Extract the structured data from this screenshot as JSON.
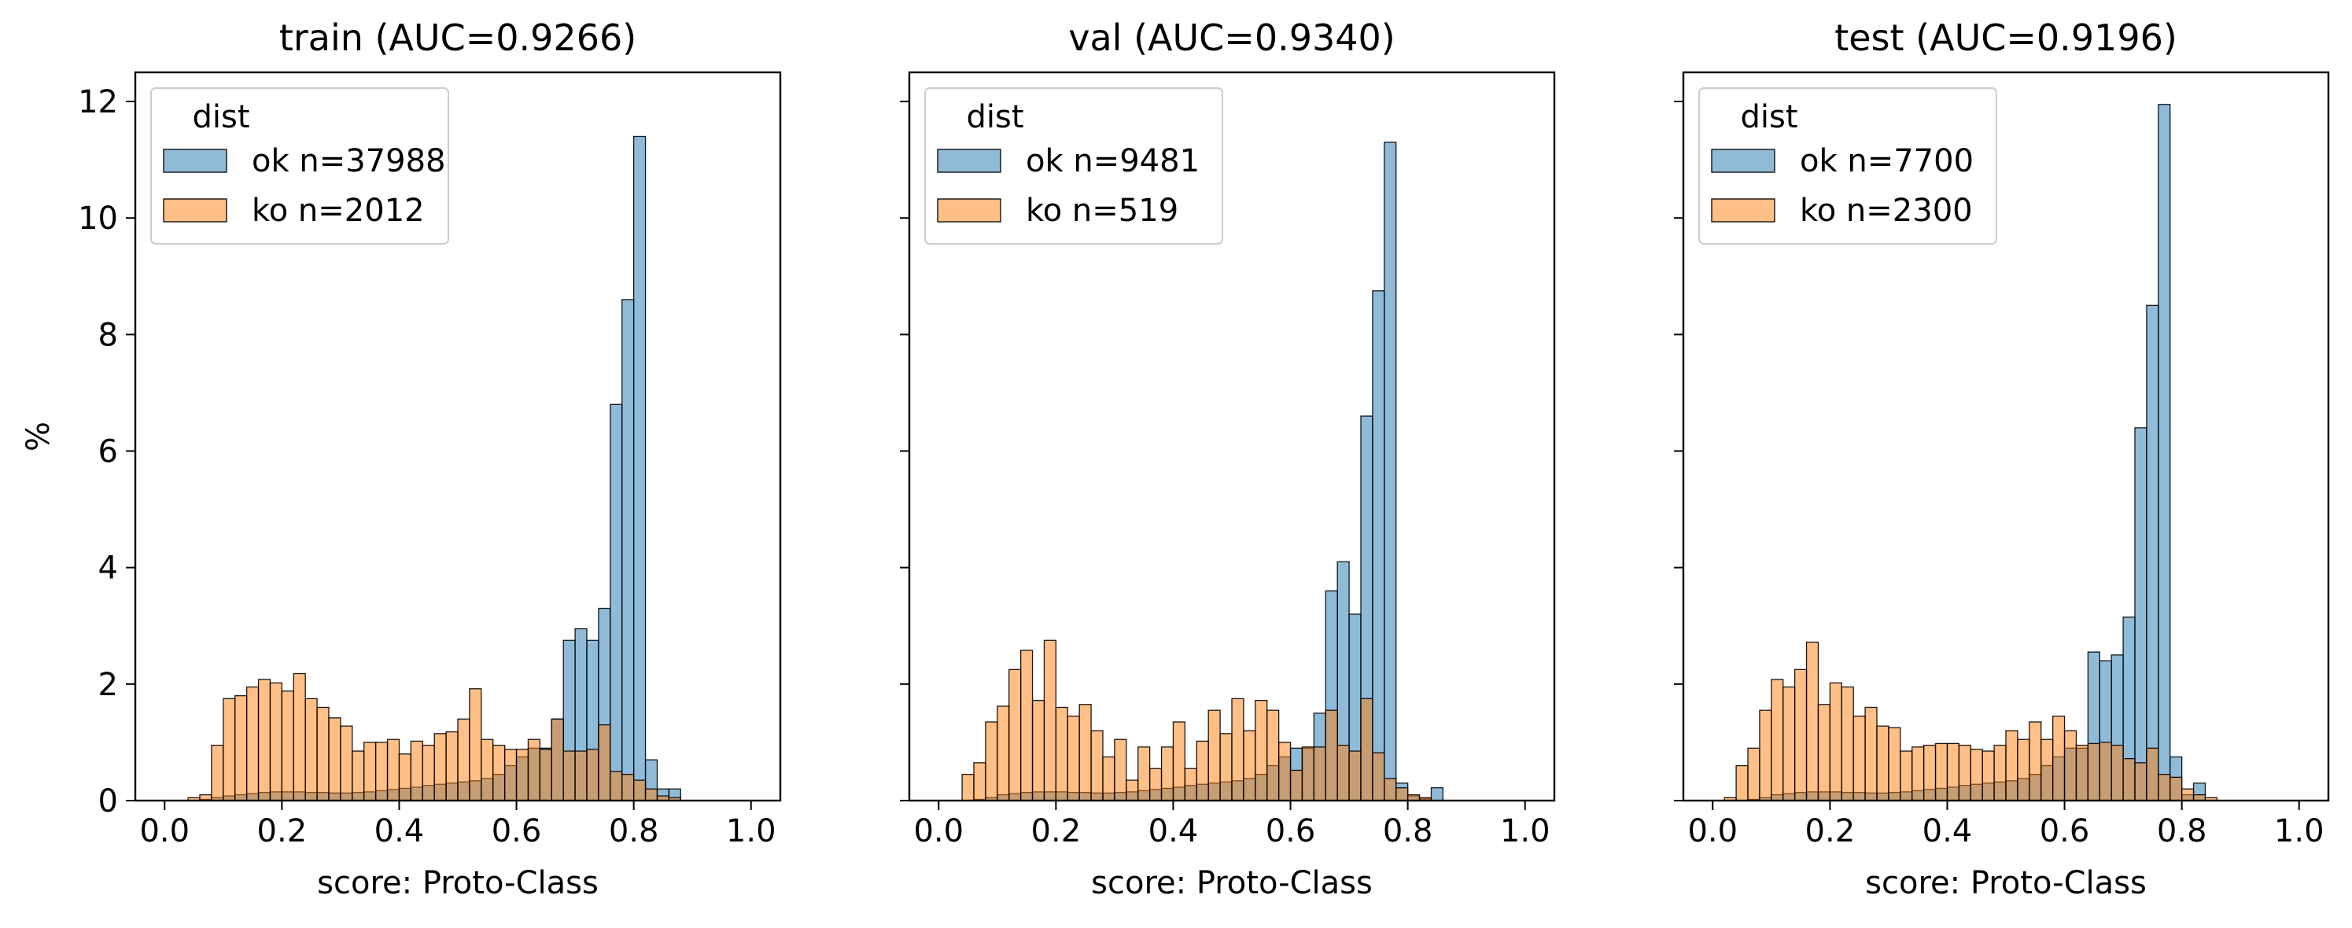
{
  "figure": {
    "ylabel": "%",
    "legend_title": "dist"
  },
  "colors": {
    "ok": "#1f77b4",
    "ko": "#ff7f0e",
    "edge": "#000000"
  },
  "chart_data": [
    {
      "type": "bar",
      "title": "train (AUC=0.9266)",
      "xlabel": "score: Proto-Class",
      "ylabel": "%",
      "xlim": [
        -0.05,
        1.05
      ],
      "ylim": [
        0,
        12.5
      ],
      "bin_width": 0.02,
      "bin_start": 0.0,
      "xticks": [
        0.0,
        0.2,
        0.4,
        0.6,
        0.8,
        1.0
      ],
      "xtick_labels": [
        "0.0",
        "0.2",
        "0.4",
        "0.6",
        "0.8",
        "1.0"
      ],
      "yticks": [
        0,
        2,
        4,
        6,
        8,
        10,
        12
      ],
      "ytick_labels": [
        "0",
        "2",
        "4",
        "6",
        "8",
        "10",
        "12"
      ],
      "legend_placement": "top-left",
      "series": [
        {
          "name": "ok n=37988",
          "key": "ok",
          "values": [
            0,
            0,
            0,
            0.02,
            0.05,
            0.08,
            0.1,
            0.12,
            0.14,
            0.15,
            0.15,
            0.15,
            0.14,
            0.14,
            0.13,
            0.13,
            0.14,
            0.15,
            0.17,
            0.19,
            0.21,
            0.23,
            0.26,
            0.28,
            0.3,
            0.32,
            0.34,
            0.38,
            0.45,
            0.6,
            0.75,
            0.9,
            0.9,
            1.4,
            2.75,
            2.95,
            2.75,
            3.3,
            6.8,
            8.6,
            11.4,
            0.7,
            0.2,
            0.2
          ]
        },
        {
          "name": "ko n=2012",
          "key": "ko",
          "values": [
            0,
            0,
            0.05,
            0.1,
            0.95,
            1.75,
            1.8,
            1.95,
            2.08,
            2.02,
            1.88,
            2.18,
            1.75,
            1.6,
            1.42,
            1.28,
            0.85,
            1.0,
            1.0,
            1.05,
            0.8,
            1.02,
            0.95,
            1.15,
            1.18,
            1.4,
            1.92,
            1.05,
            0.95,
            0.88,
            0.88,
            1.05,
            0.88,
            1.4,
            0.85,
            0.85,
            0.88,
            1.3,
            0.5,
            0.45,
            0.35,
            0.2,
            0.08,
            0.05
          ]
        }
      ]
    },
    {
      "type": "bar",
      "title": "val (AUC=0.9340)",
      "xlabel": "score: Proto-Class",
      "ylabel": "",
      "xlim": [
        -0.05,
        1.05
      ],
      "ylim": [
        0,
        12.5
      ],
      "bin_width": 0.02,
      "bin_start": 0.0,
      "xticks": [
        0.0,
        0.2,
        0.4,
        0.6,
        0.8,
        1.0
      ],
      "xtick_labels": [
        "0.0",
        "0.2",
        "0.4",
        "0.6",
        "0.8",
        "1.0"
      ],
      "yticks": [
        0,
        2,
        4,
        6,
        8,
        10,
        12
      ],
      "legend_placement": "top-left",
      "series": [
        {
          "name": "ok n=9481",
          "key": "ok",
          "values": [
            0,
            0,
            0,
            0.02,
            0.05,
            0.1,
            0.12,
            0.14,
            0.15,
            0.15,
            0.15,
            0.14,
            0.14,
            0.13,
            0.13,
            0.14,
            0.15,
            0.17,
            0.19,
            0.21,
            0.23,
            0.26,
            0.28,
            0.3,
            0.32,
            0.34,
            0.38,
            0.45,
            0.6,
            0.75,
            0.9,
            0.9,
            1.5,
            3.6,
            4.1,
            3.2,
            6.6,
            8.75,
            11.3,
            0.3,
            0.08,
            0.03,
            0.22,
            0
          ]
        },
        {
          "name": "ko n=519",
          "key": "ko",
          "values": [
            0,
            0,
            0.45,
            0.65,
            1.35,
            1.62,
            2.25,
            2.58,
            1.72,
            2.75,
            1.6,
            1.45,
            1.65,
            1.2,
            0.75,
            1.05,
            0.35,
            0.92,
            0.55,
            0.92,
            1.35,
            0.55,
            1.02,
            1.55,
            1.15,
            1.75,
            1.2,
            1.72,
            1.55,
            1.0,
            0.52,
            0.92,
            0.92,
            1.55,
            0.95,
            0.85,
            1.75,
            0.82,
            0.38,
            0.22,
            0.1,
            0.05,
            0,
            0
          ]
        }
      ]
    },
    {
      "type": "bar",
      "title": "test (AUC=0.9196)",
      "xlabel": "score: Proto-Class",
      "ylabel": "",
      "xlim": [
        -0.05,
        1.05
      ],
      "ylim": [
        0,
        12.5
      ],
      "bin_width": 0.02,
      "bin_start": 0.0,
      "xticks": [
        0.0,
        0.2,
        0.4,
        0.6,
        0.8,
        1.0
      ],
      "xtick_labels": [
        "0.0",
        "0.2",
        "0.4",
        "0.6",
        "0.8",
        "1.0"
      ],
      "yticks": [
        0,
        2,
        4,
        6,
        8,
        10,
        12
      ],
      "legend_placement": "top-left",
      "series": [
        {
          "name": "ok n=7700",
          "key": "ok",
          "values": [
            0,
            0,
            0,
            0.02,
            0.05,
            0.1,
            0.12,
            0.14,
            0.15,
            0.15,
            0.15,
            0.14,
            0.14,
            0.13,
            0.13,
            0.14,
            0.15,
            0.17,
            0.19,
            0.21,
            0.23,
            0.26,
            0.28,
            0.3,
            0.32,
            0.34,
            0.38,
            0.45,
            0.6,
            0.75,
            0.9,
            0.9,
            2.55,
            2.4,
            2.5,
            3.15,
            6.4,
            8.5,
            11.95,
            0.75,
            0.1,
            0.3,
            0,
            0
          ]
        },
        {
          "name": "ko n=2300",
          "key": "ko",
          "values": [
            0,
            0.05,
            0.6,
            0.9,
            1.55,
            2.08,
            1.95,
            2.25,
            2.72,
            1.65,
            2.02,
            1.95,
            1.45,
            1.6,
            1.28,
            1.25,
            0.85,
            0.92,
            0.95,
            0.98,
            0.98,
            0.95,
            0.88,
            0.85,
            0.95,
            1.2,
            1.05,
            1.35,
            1.05,
            1.45,
            1.2,
            0.95,
            0.98,
            1.0,
            0.95,
            0.72,
            0.65,
            0.9,
            0.45,
            0.4,
            0.2,
            0.1,
            0.05,
            0
          ]
        }
      ]
    }
  ]
}
